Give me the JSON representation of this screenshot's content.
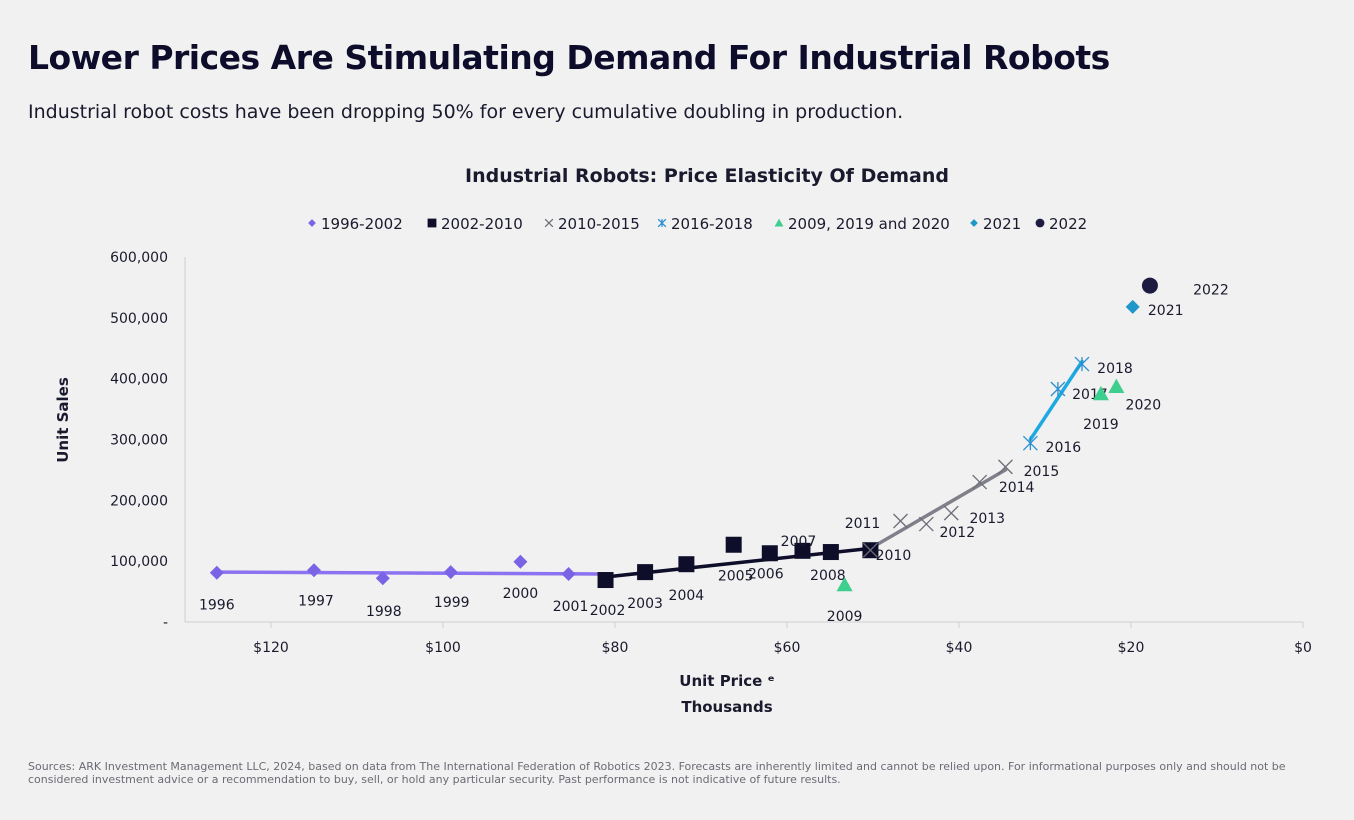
{
  "header": {
    "title": "Lower Prices Are Stimulating Demand For Industrial Robots",
    "subtitle": "Industrial robot costs have been dropping 50% for every cumulative doubling in production."
  },
  "footnote": "Sources: ARK Investment Management LLC, 2024, based on data from The International Federation of Robotics 2023. Forecasts are inherently limited and cannot be relied upon. For informational purposes only and should not be considered investment advice or a recommendation to buy, sell, or hold any particular security. Past performance is not indicative of future results.",
  "chart_data": {
    "type": "scatter",
    "title": "Industrial Robots: Price Elasticity Of Demand",
    "xlabel": "Unit Price ᵉ",
    "xlabel_sub": "Thousands",
    "ylabel": "Unit Sales",
    "xlim": [
      130,
      0
    ],
    "x_reversed": true,
    "ylim": [
      0,
      600000
    ],
    "x_ticks": [
      120,
      100,
      80,
      60,
      40,
      20,
      0
    ],
    "x_tick_labels": [
      "$120",
      "$100",
      "$80",
      "$60",
      "$40",
      "$20",
      "$0"
    ],
    "y_ticks": [
      0,
      100000,
      200000,
      300000,
      400000,
      500000,
      600000
    ],
    "y_tick_labels": [
      "-",
      "100,000",
      "200,000",
      "300,000",
      "400,000",
      "500,000",
      "600,000"
    ],
    "grid": false,
    "legend_position": "top",
    "series": [
      {
        "name": "1996-2002",
        "marker": "diamond",
        "color": "#7b63e6",
        "line_color": "#8b72f0",
        "points": [
          {
            "label": "1996",
            "x": 126.3,
            "y": 81000
          },
          {
            "label": "1997",
            "x": 115.0,
            "y": 85000
          },
          {
            "label": "1998",
            "x": 107.0,
            "y": 72000
          },
          {
            "label": "1999",
            "x": 99.1,
            "y": 82000
          },
          {
            "label": "2000",
            "x": 91.0,
            "y": 99000
          },
          {
            "label": "2001",
            "x": 85.4,
            "y": 79000
          }
        ],
        "trend": [
          [
            126.3,
            82000
          ],
          [
            81.1,
            79000
          ]
        ]
      },
      {
        "name": "2002-2010",
        "marker": "square",
        "color": "#0e0e2a",
        "line_color": "#0e0e2a",
        "points": [
          {
            "label": "2002",
            "x": 81.1,
            "y": 69000
          },
          {
            "label": "2003",
            "x": 76.5,
            "y": 82000
          },
          {
            "label": "2004",
            "x": 71.7,
            "y": 95000
          },
          {
            "label": "2005",
            "x": 66.2,
            "y": 127000
          },
          {
            "label": "2006",
            "x": 62.0,
            "y": 113000
          },
          {
            "label": "2007",
            "x": 58.2,
            "y": 117000
          },
          {
            "label": "2008",
            "x": 54.9,
            "y": 115000
          },
          {
            "label": "2010",
            "x": 50.3,
            "y": 118000
          }
        ],
        "trend": [
          [
            81.1,
            74000
          ],
          [
            50.3,
            121000
          ]
        ]
      },
      {
        "name": "2010-2015",
        "marker": "x",
        "color": "#6e6e78",
        "line_color": "#80808a",
        "points": [
          {
            "label": "",
            "x": 50.3,
            "y": 118000
          },
          {
            "label": "2011",
            "x": 46.8,
            "y": 166000
          },
          {
            "label": "2012",
            "x": 43.8,
            "y": 161000
          },
          {
            "label": "2013",
            "x": 40.9,
            "y": 179000
          },
          {
            "label": "2014",
            "x": 37.6,
            "y": 230000
          },
          {
            "label": "2015",
            "x": 34.6,
            "y": 255000
          }
        ],
        "trend": [
          [
            50.3,
            121000
          ],
          [
            34.6,
            250000
          ]
        ]
      },
      {
        "name": "2016-2018",
        "marker": "asterisk",
        "color": "#2a8fd0",
        "line_color": "#1ea9e2",
        "points": [
          {
            "label": "2016",
            "x": 31.7,
            "y": 294000
          },
          {
            "label": "2017",
            "x": 28.5,
            "y": 383000
          },
          {
            "label": "2018",
            "x": 25.7,
            "y": 424000
          }
        ],
        "trend": [
          [
            31.7,
            300000
          ],
          [
            25.7,
            428000
          ]
        ]
      },
      {
        "name": "2009, 2019 and 2020",
        "marker": "triangle",
        "color": "#3ecf8e",
        "points": [
          {
            "label": "2009",
            "x": 53.3,
            "y": 61000
          },
          {
            "label": "2019",
            "x": 23.5,
            "y": 375000
          },
          {
            "label": "2020",
            "x": 21.7,
            "y": 387000
          }
        ]
      },
      {
        "name": "2021",
        "marker": "diamond",
        "color": "#1f97c8",
        "points": [
          {
            "label": "2021",
            "x": 19.8,
            "y": 518000
          }
        ]
      },
      {
        "name": "2022",
        "marker": "circle",
        "color": "#1c1c42",
        "points": [
          {
            "label": "2022",
            "x": 17.8,
            "y": 553000
          }
        ]
      }
    ]
  }
}
